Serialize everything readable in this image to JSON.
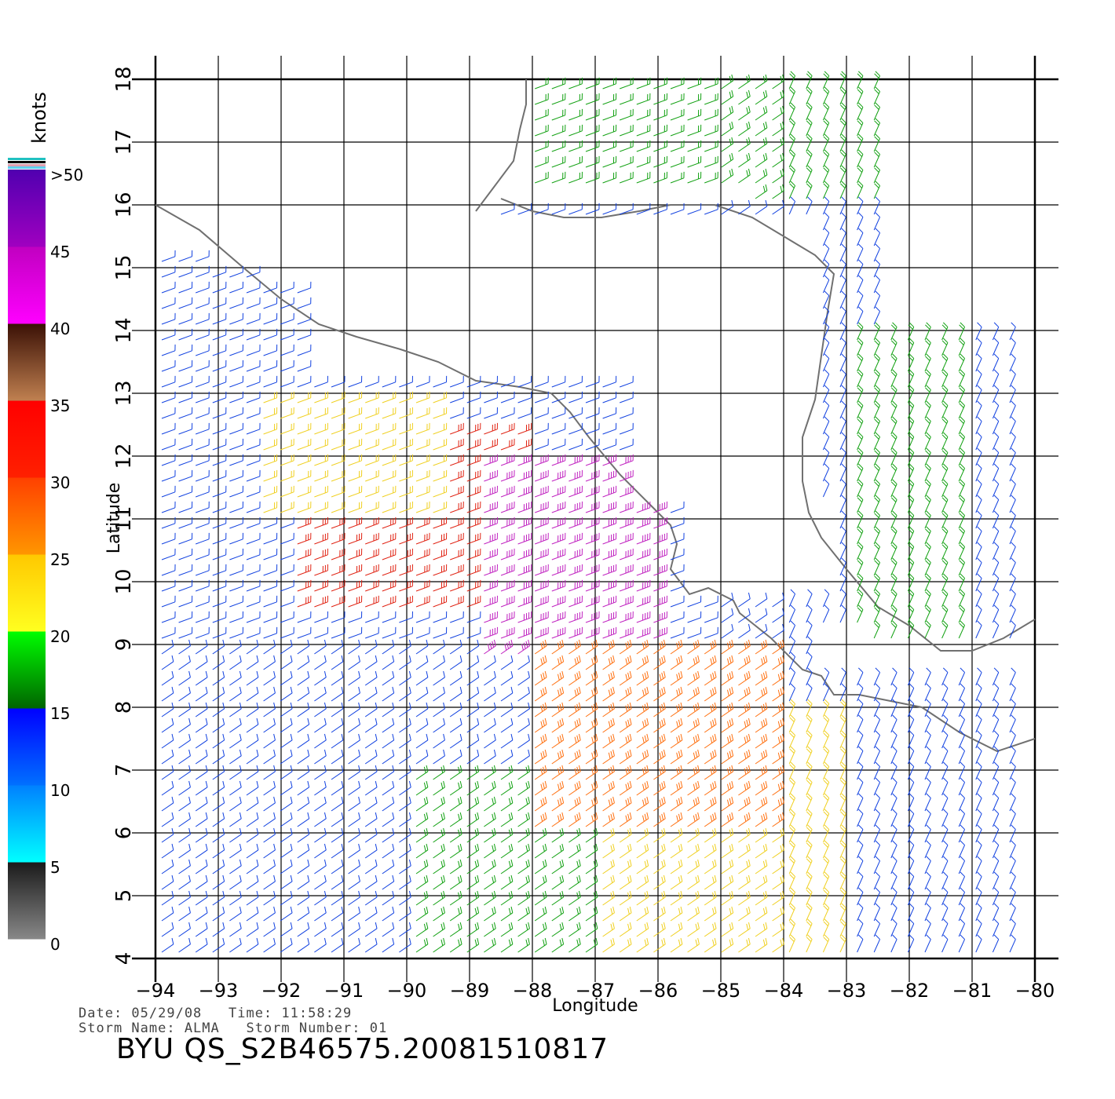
{
  "chart_data": {
    "type": "wind-barb-map",
    "xlabel": "Longitude",
    "ylabel": "Latitude",
    "xlim": [
      -94,
      -80
    ],
    "ylim": [
      4,
      18
    ],
    "x_ticks": [
      "-94",
      "-93",
      "-92",
      "-91",
      "-90",
      "-89",
      "-88",
      "-87",
      "-86",
      "-85",
      "-84",
      "-83",
      "-82",
      "-81",
      "-80"
    ],
    "y_ticks": [
      "4",
      "5",
      "6",
      "7",
      "8",
      "9",
      "10",
      "11",
      "12",
      "13",
      "14",
      "15",
      "16",
      "17",
      "18"
    ],
    "grid": true,
    "colorbar": {
      "unit_label": "knots",
      "tick_labels": [
        ">50",
        "45",
        "40",
        "35",
        "30",
        "25",
        "20",
        "15",
        "10",
        "5",
        "0"
      ],
      "bands": [
        {
          "range": [
            0,
            5
          ],
          "colors": [
            "#888888",
            "#1a1a1a"
          ]
        },
        {
          "range": [
            5,
            10
          ],
          "colors": [
            "#00ffff",
            "#0080ff"
          ]
        },
        {
          "range": [
            10,
            15
          ],
          "colors": [
            "#0070ff",
            "#0000ff"
          ]
        },
        {
          "range": [
            15,
            20
          ],
          "colors": [
            "#006400",
            "#00ff00"
          ]
        },
        {
          "range": [
            20,
            25
          ],
          "colors": [
            "#ffff20",
            "#ffc800"
          ]
        },
        {
          "range": [
            25,
            30
          ],
          "colors": [
            "#ff9600",
            "#ff4000"
          ]
        },
        {
          "range": [
            30,
            35
          ],
          "colors": [
            "#ff2000",
            "#ff0000"
          ]
        },
        {
          "range": [
            35,
            40
          ],
          "colors": [
            "#c08050",
            "#3a1005"
          ]
        },
        {
          "range": [
            40,
            45
          ],
          "colors": [
            "#ff00ff",
            "#c000c0"
          ]
        },
        {
          "range": [
            45,
            50
          ],
          "colors": [
            "#a000c0",
            "#5000b0"
          ]
        }
      ]
    },
    "wind_field": {
      "description_free": true,
      "regions": [
        {
          "lon": [
            -94,
            -90
          ],
          "lat": [
            4,
            8
          ],
          "speed_kt": 13
        },
        {
          "lon": [
            -90,
            -87
          ],
          "lat": [
            4,
            7
          ],
          "speed_kt": 18
        },
        {
          "lon": [
            -87,
            -83
          ],
          "lat": [
            4,
            8
          ],
          "speed_kt": 22
        },
        {
          "lon": [
            -83,
            -80
          ],
          "lat": [
            4,
            7
          ],
          "speed_kt": 13
        },
        {
          "lon": [
            -94,
            -91
          ],
          "lat": [
            8,
            12
          ],
          "speed_kt": 12
        },
        {
          "lon": [
            -92,
            -88
          ],
          "lat": [
            9.5,
            12.5
          ],
          "speed_kt": 31
        },
        {
          "lon": [
            -89,
            -86
          ],
          "lat": [
            8.8,
            12
          ],
          "speed_kt": 44
        },
        {
          "lon": [
            -88,
            -84
          ],
          "lat": [
            6,
            9
          ],
          "speed_kt": 27
        },
        {
          "lon": [
            -94,
            -90
          ],
          "lat": [
            12,
            15
          ],
          "speed_kt": 11
        },
        {
          "lon": [
            -92.5,
            -89.5
          ],
          "lat": [
            11,
            13
          ],
          "speed_kt": 24
        },
        {
          "lon": [
            -88,
            -82
          ],
          "lat": [
            16,
            18
          ],
          "speed_kt": 17
        },
        {
          "lon": [
            -83,
            -81
          ],
          "lat": [
            9,
            14
          ],
          "speed_kt": 16
        }
      ]
    },
    "coastlines": [
      {
        "name": "pacific-coast",
        "points": [
          [
            -94,
            16.0
          ],
          [
            -93.3,
            15.6
          ],
          [
            -92.6,
            15.0
          ],
          [
            -92.0,
            14.5
          ],
          [
            -91.4,
            14.1
          ],
          [
            -90.8,
            13.9
          ],
          [
            -90.1,
            13.7
          ],
          [
            -89.5,
            13.5
          ],
          [
            -88.9,
            13.2
          ],
          [
            -88.2,
            13.1
          ],
          [
            -87.7,
            13.0
          ],
          [
            -87.4,
            12.7
          ],
          [
            -87.1,
            12.3
          ],
          [
            -86.6,
            11.7
          ],
          [
            -86.1,
            11.2
          ],
          [
            -85.8,
            10.9
          ],
          [
            -85.7,
            10.6
          ],
          [
            -85.8,
            10.2
          ],
          [
            -85.5,
            9.8
          ],
          [
            -85.2,
            9.9
          ],
          [
            -84.8,
            9.7
          ],
          [
            -84.7,
            9.5
          ],
          [
            -84.2,
            9.1
          ],
          [
            -83.7,
            8.6
          ],
          [
            -83.4,
            8.5
          ],
          [
            -83.2,
            8.2
          ],
          [
            -82.8,
            8.2
          ],
          [
            -82.3,
            8.1
          ],
          [
            -81.8,
            8.0
          ],
          [
            -81.2,
            7.6
          ],
          [
            -80.6,
            7.3
          ],
          [
            -80.0,
            7.5
          ]
        ]
      },
      {
        "name": "caribbean-coast",
        "points": [
          [
            -88.5,
            16.1
          ],
          [
            -88.0,
            15.9
          ],
          [
            -87.5,
            15.8
          ],
          [
            -86.9,
            15.8
          ],
          [
            -86.3,
            15.9
          ],
          [
            -85.8,
            16.0
          ],
          [
            -85.1,
            16.0
          ],
          [
            -84.5,
            15.8
          ],
          [
            -84.0,
            15.5
          ],
          [
            -83.5,
            15.2
          ],
          [
            -83.2,
            14.9
          ],
          [
            -83.3,
            14.3
          ],
          [
            -83.4,
            13.6
          ],
          [
            -83.5,
            12.9
          ],
          [
            -83.7,
            12.3
          ],
          [
            -83.7,
            11.6
          ],
          [
            -83.6,
            11.1
          ],
          [
            -83.4,
            10.7
          ],
          [
            -83.0,
            10.2
          ],
          [
            -82.5,
            9.6
          ],
          [
            -82.0,
            9.3
          ],
          [
            -81.5,
            8.9
          ],
          [
            -81.0,
            8.9
          ],
          [
            -80.5,
            9.1
          ],
          [
            -80.0,
            9.4
          ]
        ]
      },
      {
        "name": "yucatan-belize",
        "points": [
          [
            -88.1,
            18.0
          ],
          [
            -88.1,
            17.6
          ],
          [
            -88.2,
            17.2
          ],
          [
            -88.3,
            16.7
          ],
          [
            -88.6,
            16.3
          ],
          [
            -88.9,
            15.9
          ]
        ]
      }
    ]
  },
  "footer": {
    "date_line": "Date: 05/29/08   Time: 11:58:29",
    "storm_line": "Storm Name: ALMA   Storm Number: 01",
    "id_line": "BYU QS_S2B46575.20081510817"
  }
}
